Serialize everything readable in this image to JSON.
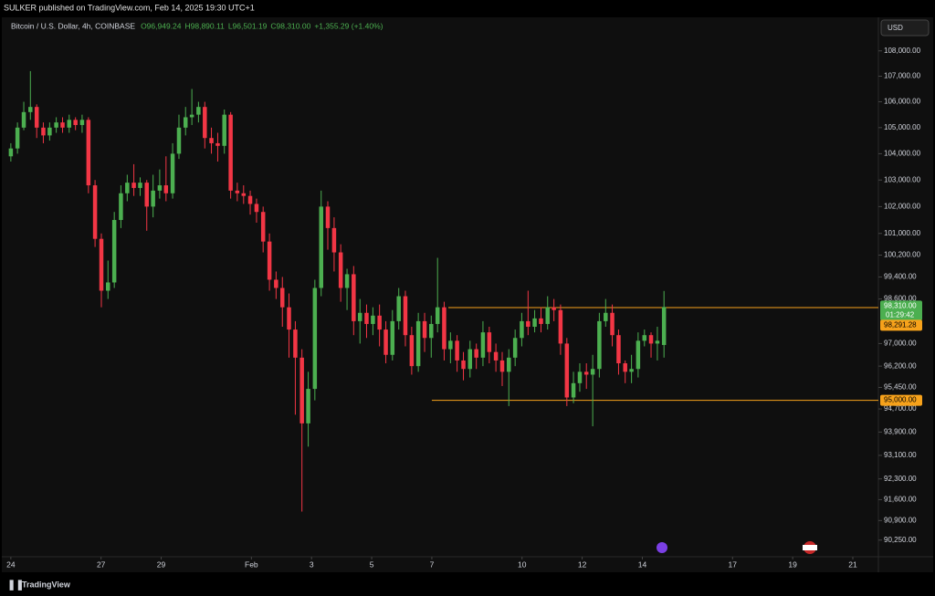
{
  "chart_data": {
    "type": "candlestick",
    "header": "SULKER published on TradingView.com, Feb 14, 2025 19:30 UTC+1",
    "title": "Bitcoin / U.S. Dollar, 4h, COINBASE",
    "ohlc_text": [
      "O96,949.24",
      "H98,890.11",
      "L96,501.19",
      "C98,310.00",
      "+1,355.29 (+1.40%)"
    ],
    "currency": "USD",
    "brand": "TradingView",
    "countdown": "01:29:42",
    "up_color": "#4caf50",
    "down_color": "#f23645",
    "grid": false,
    "log": true,
    "ylim": [
      89700,
      109300
    ],
    "yticks": [
      {
        "value": 108000,
        "label": "108,000.00"
      },
      {
        "value": 107000,
        "label": "107,000.00"
      },
      {
        "value": 106000,
        "label": "106,000.00"
      },
      {
        "value": 105000,
        "label": "105,000.00"
      },
      {
        "value": 104000,
        "label": "104,000.00"
      },
      {
        "value": 103000,
        "label": "103,000.00"
      },
      {
        "value": 102000,
        "label": "102,000.00"
      },
      {
        "value": 101000,
        "label": "101,000.00"
      },
      {
        "value": 100200,
        "label": "100,200.00"
      },
      {
        "value": 99400,
        "label": "99,400.00"
      },
      {
        "value": 98600,
        "label": "98,600.00"
      },
      {
        "value": 97000,
        "label": "97,000.00"
      },
      {
        "value": 96200,
        "label": "96,200.00"
      },
      {
        "value": 95450,
        "label": "95,450.00"
      },
      {
        "value": 94700,
        "label": "94,700.00"
      },
      {
        "value": 93900,
        "label": "93,900.00"
      },
      {
        "value": 93100,
        "label": "93,100.00"
      },
      {
        "value": 92300,
        "label": "92,300.00"
      },
      {
        "value": 91600,
        "label": "91,600.00"
      },
      {
        "value": 90900,
        "label": "90,900.00"
      },
      {
        "value": 90250,
        "label": "90,250.00"
      }
    ],
    "xlim": [
      -0.3,
      28.85
    ],
    "xticks": [
      {
        "value": 0,
        "label": "24"
      },
      {
        "value": 3,
        "label": "27"
      },
      {
        "value": 5,
        "label": "29"
      },
      {
        "value": 8,
        "label": "Feb"
      },
      {
        "value": 10,
        "label": "3"
      },
      {
        "value": 12,
        "label": "5"
      },
      {
        "value": 14,
        "label": "7"
      },
      {
        "value": 17,
        "label": "10"
      },
      {
        "value": 19,
        "label": "12"
      },
      {
        "value": 21,
        "label": "14"
      },
      {
        "value": 24,
        "label": "17"
      },
      {
        "value": 26,
        "label": "19"
      },
      {
        "value": 28,
        "label": "21"
      }
    ],
    "x": [
      0,
      0.22,
      0.43,
      0.65,
      0.86,
      1.08,
      1.29,
      1.51,
      1.72,
      1.94,
      2.15,
      2.37,
      2.58,
      2.8,
      3.01,
      3.23,
      3.44,
      3.66,
      3.87,
      4.09,
      4.3,
      4.52,
      4.73,
      4.95,
      5.16,
      5.38,
      5.59,
      5.81,
      6.02,
      6.24,
      6.45,
      6.67,
      6.88,
      7.1,
      7.31,
      7.53,
      7.74,
      7.96,
      8.17,
      8.39,
      8.6,
      8.82,
      9.03,
      9.25,
      9.46,
      9.68,
      9.89,
      10.11,
      10.32,
      10.54,
      10.75,
      10.97,
      11.18,
      11.4,
      11.61,
      11.83,
      12.04,
      12.26,
      12.47,
      12.69,
      12.9,
      13.12,
      13.33,
      13.55,
      13.76,
      13.98,
      14.19,
      14.41,
      14.62,
      14.84,
      15.05,
      15.27,
      15.48,
      15.7,
      15.91,
      16.13,
      16.34,
      16.56,
      16.77,
      16.99,
      17.2,
      17.42,
      17.63,
      17.85,
      18.06,
      18.28,
      18.49,
      18.71,
      18.92,
      19.14,
      19.35,
      19.57,
      19.78,
      20.0,
      20.21,
      20.43,
      20.64,
      20.86,
      21.07,
      21.29,
      21.5,
      21.72
    ],
    "open": [
      103900,
      104200,
      105000,
      105600,
      105800,
      105000,
      104700,
      105000,
      105200,
      105000,
      105300,
      105100,
      105300,
      102800,
      100800,
      98900,
      99200,
      101500,
      102500,
      102900,
      102700,
      102900,
      102000,
      102600,
      102800,
      102500,
      104000,
      105000,
      105400,
      105500,
      105800,
      104600,
      104400,
      104300,
      105500,
      102600,
      102500,
      102400,
      102100,
      101800,
      100700,
      99300,
      99000,
      98300,
      97500,
      96500,
      94200,
      95400,
      99000,
      102000,
      101200,
      100300,
      99000,
      99500,
      97800,
      98100,
      97700,
      98000,
      97500,
      96600,
      97800,
      98700,
      97300,
      96200,
      97800,
      97200,
      97700,
      98300,
      96800,
      97100,
      96400,
      96100,
      96800,
      96500,
      97400,
      96700,
      96400,
      96000,
      96500,
      97200,
      97800,
      97600,
      97900,
      97700,
      98300,
      98200,
      97000,
      95100,
      95600,
      96000,
      95900,
      96100,
      97800,
      98100,
      97300,
      96300,
      96000,
      96100,
      97100,
      97300,
      97000,
      96949.24
    ],
    "high": [
      104400,
      105200,
      106000,
      107200,
      105900,
      105200,
      105200,
      105400,
      105400,
      105500,
      105400,
      105500,
      105400,
      103000,
      101000,
      100000,
      101800,
      102800,
      103200,
      103600,
      103100,
      103000,
      103200,
      103400,
      103900,
      104400,
      105500,
      105800,
      106500,
      106000,
      106000,
      105000,
      104800,
      105700,
      105600,
      102900,
      102800,
      102600,
      102300,
      102000,
      101000,
      99600,
      99400,
      98800,
      97800,
      96800,
      96000,
      99300,
      102600,
      102200,
      101600,
      100600,
      99700,
      99800,
      98600,
      98400,
      98300,
      98400,
      97800,
      98200,
      99000,
      98900,
      97600,
      98100,
      98100,
      98000,
      100100,
      98500,
      97400,
      97300,
      96700,
      97100,
      97000,
      97800,
      97600,
      97000,
      96700,
      96800,
      97500,
      98100,
      98900,
      98200,
      98300,
      98700,
      98600,
      98400,
      97200,
      96000,
      96300,
      96300,
      96600,
      98100,
      98600,
      98400,
      97500,
      96400,
      96600,
      97400,
      97500,
      97400,
      97600,
      98890.11
    ],
    "low": [
      103700,
      104000,
      104900,
      105300,
      104600,
      104400,
      104500,
      104800,
      104800,
      104800,
      104900,
      104800,
      102500,
      100500,
      98300,
      98600,
      99000,
      101200,
      102200,
      102400,
      102400,
      101100,
      101600,
      102300,
      102200,
      102300,
      103800,
      104700,
      105100,
      105200,
      104200,
      104000,
      103700,
      104000,
      102300,
      102200,
      102100,
      101700,
      101400,
      100300,
      98900,
      98600,
      97600,
      96500,
      94500,
      91200,
      93400,
      95000,
      98700,
      100400,
      99600,
      98500,
      98200,
      97300,
      97000,
      97200,
      97300,
      96900,
      96300,
      96400,
      97500,
      96900,
      95900,
      96000,
      96700,
      96500,
      97400,
      96400,
      96300,
      96000,
      95700,
      95800,
      96100,
      96200,
      96300,
      96000,
      95500,
      94800,
      96200,
      96900,
      97300,
      97400,
      97400,
      97500,
      97800,
      96600,
      94800,
      94900,
      95300,
      95400,
      94100,
      95800,
      97600,
      96900,
      95900,
      95600,
      95600,
      95800,
      96900,
      96500,
      96400,
      96501.19
    ],
    "close": [
      104200,
      105000,
      105600,
      105800,
      105000,
      104700,
      105000,
      105200,
      105000,
      105300,
      105100,
      105300,
      102800,
      100800,
      98900,
      99200,
      101500,
      102500,
      102900,
      102700,
      102900,
      102000,
      102600,
      102800,
      102500,
      104000,
      105000,
      105400,
      105500,
      105800,
      104600,
      104400,
      104300,
      105500,
      102600,
      102500,
      102400,
      102100,
      101800,
      100700,
      99300,
      99000,
      98300,
      97500,
      96500,
      94200,
      95400,
      99000,
      102000,
      101200,
      100300,
      99000,
      99500,
      97800,
      98100,
      97700,
      98000,
      97500,
      96600,
      97800,
      98700,
      97300,
      96200,
      97800,
      97200,
      97700,
      98300,
      96800,
      97100,
      96400,
      96100,
      96800,
      96500,
      97400,
      96700,
      96400,
      96000,
      96500,
      97200,
      97800,
      97600,
      97900,
      97700,
      98300,
      98200,
      97000,
      95100,
      95600,
      96000,
      95900,
      96100,
      97800,
      98100,
      97300,
      96300,
      96000,
      96100,
      97100,
      97300,
      97000,
      97100,
      98310
    ],
    "levels": [
      {
        "value": 98291.28,
        "label": "98,291.28",
        "start": 14.55,
        "color": "#f7a21b"
      },
      {
        "value": 95000,
        "label": "95,000.00",
        "start": 14.0,
        "color": "#f7a21b"
      }
    ],
    "last_label": "98,310.00"
  }
}
